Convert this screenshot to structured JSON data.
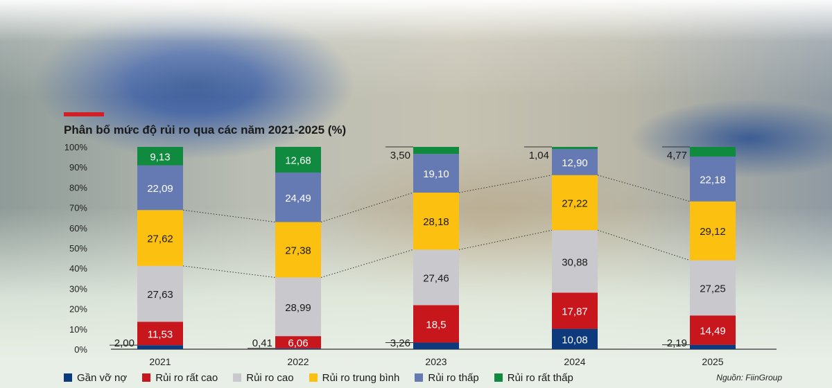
{
  "title": "Phân bố mức độ rủi ro qua các năm 2021-2025 (%)",
  "source": "Nguồn: FiinGroup",
  "chart_data": {
    "type": "bar",
    "stacked": true,
    "categories": [
      "2021",
      "2022",
      "2023",
      "2024",
      "2025"
    ],
    "yticks": [
      "0%",
      "10%",
      "20%",
      "30%",
      "40%",
      "50%",
      "60%",
      "70%",
      "80%",
      "90%",
      "100%"
    ],
    "ylim": [
      0,
      100
    ],
    "series": [
      {
        "name": "Gần vỡ nợ",
        "color": "#0d3a7d",
        "values": [
          2.0,
          0.41,
          3.26,
          10.08,
          2.19
        ],
        "labels": [
          "2,00",
          "0,41",
          "3,26",
          "10,08",
          "2,19"
        ]
      },
      {
        "name": "Rủi ro rất cao",
        "color": "#c8161d",
        "values": [
          11.53,
          6.06,
          18.5,
          17.87,
          14.49
        ],
        "labels": [
          "11,53",
          "6,06",
          "18,5",
          "17,87",
          "14,49"
        ]
      },
      {
        "name": "Rủi ro cao",
        "color": "#c9c8cc",
        "values": [
          27.63,
          28.99,
          27.46,
          30.88,
          27.25
        ],
        "labels": [
          "27,63",
          "28,99",
          "27,46",
          "30,88",
          "27,25"
        ]
      },
      {
        "name": "Rủi ro trung bình",
        "color": "#fcc011",
        "values": [
          27.62,
          27.38,
          28.18,
          27.22,
          29.12
        ],
        "labels": [
          "27,62",
          "27,38",
          "28,18",
          "27,22",
          "29,12"
        ]
      },
      {
        "name": "Rủi ro thấp",
        "color": "#6579b3",
        "values": [
          22.09,
          24.49,
          19.1,
          12.9,
          22.18
        ],
        "labels": [
          "22,09",
          "24,49",
          "19,10",
          "12,90",
          "22,18"
        ]
      },
      {
        "name": "Rủi ro rất thấp",
        "color": "#0f8a3e",
        "values": [
          9.13,
          12.68,
          3.5,
          1.04,
          4.77
        ],
        "labels": [
          "9,13",
          "12,68",
          "3,50",
          "1,04",
          "4,77"
        ]
      }
    ],
    "grid": false,
    "legend_position": "bottom"
  }
}
